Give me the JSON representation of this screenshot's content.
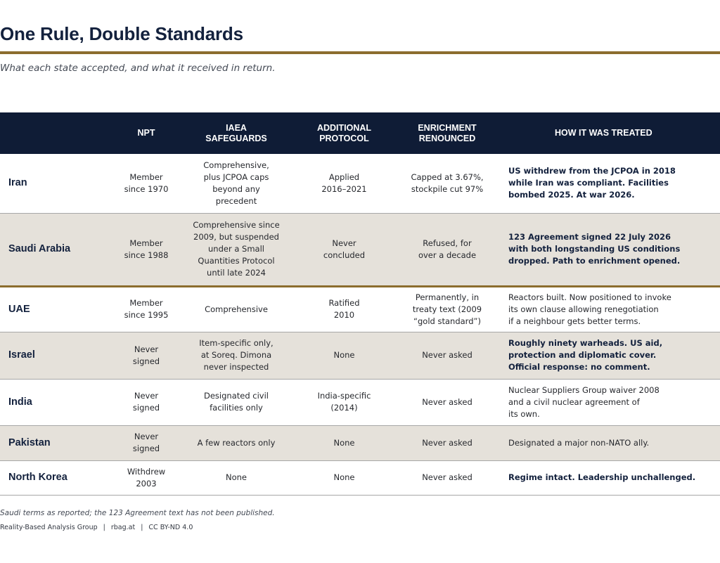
{
  "header": {
    "title": "One Rule, Double Standards",
    "subtitle": "What each state accepted, and what it received in return."
  },
  "table": {
    "columns": {
      "country": "",
      "npt": "NPT",
      "iaea": "IAEA\nSAFEGUARDS",
      "protocol": "ADDITIONAL\nPROTOCOL",
      "enrichment": "ENRICHMENT\nRENOUNCED",
      "treated": "HOW IT WAS TREATED"
    },
    "rows": [
      {
        "country": "Iran",
        "npt": "Member\nsince 1970",
        "iaea": "Comprehensive,\nplus JCPOA caps\nbeyond any\nprecedent",
        "protocol": "Applied\n2016–2021",
        "enrichment": "Capped at 3.67%,\nstockpile cut 97%",
        "treated": "US withdrew from the JCPOA in 2018\nwhile Iran was compliant. Facilities\nbombed 2025. At war 2026."
      },
      {
        "country": "Saudi Arabia",
        "npt": "Member\nsince 1988",
        "iaea": "Comprehensive since\n2009, but suspended\nunder a Small\nQuantities Protocol\nuntil late 2024",
        "protocol": "Never\nconcluded",
        "enrichment": "Refused, for\nover a decade",
        "treated": "123 Agreement signed 22 July 2026\nwith both longstanding US conditions\ndropped. Path to enrichment opened."
      },
      {
        "country": "UAE",
        "npt": "Member\nsince 1995",
        "iaea": "Comprehensive",
        "protocol": "Ratified\n2010",
        "enrichment": "Permanently, in\ntreaty text (2009\n“gold standard”)",
        "treated": "Reactors built. Now positioned to invoke\nits own clause allowing renegotiation\nif a neighbour gets better terms."
      },
      {
        "country": "Israel",
        "npt": "Never\nsigned",
        "iaea": "Item-specific only,\nat Soreq. Dimona\nnever inspected",
        "protocol": "None",
        "enrichment": "Never asked",
        "treated": "Roughly ninety warheads. US aid,\nprotection and diplomatic cover.\nOfficial response: no comment."
      },
      {
        "country": "India",
        "npt": "Never\nsigned",
        "iaea": "Designated civil\nfacilities only",
        "protocol": "India-specific\n(2014)",
        "enrichment": "Never asked",
        "treated": "Nuclear Suppliers Group waiver 2008\nand a civil nuclear agreement of\nits own."
      },
      {
        "country": "Pakistan",
        "npt": "Never\nsigned",
        "iaea": "A few reactors only",
        "protocol": "None",
        "enrichment": "Never asked",
        "treated": "Designated a major non-NATO ally."
      },
      {
        "country": "North Korea",
        "npt": "Withdrew\n2003",
        "iaea": "None",
        "protocol": "None",
        "enrichment": "Never asked",
        "treated": "Regime intact. Leadership unchallenged."
      }
    ]
  },
  "footer": {
    "footnote": "Saudi terms as reported; the 123 Agreement text has not been published.",
    "org": "Reality-Based Analysis Group",
    "site": "rbag.at",
    "license": "CC BY-ND 4.0",
    "separator": "|"
  },
  "colors": {
    "header_bg": "#0f1c36",
    "gold_rule": "#8c6d2e",
    "shaded_row": "#e5e1da"
  }
}
